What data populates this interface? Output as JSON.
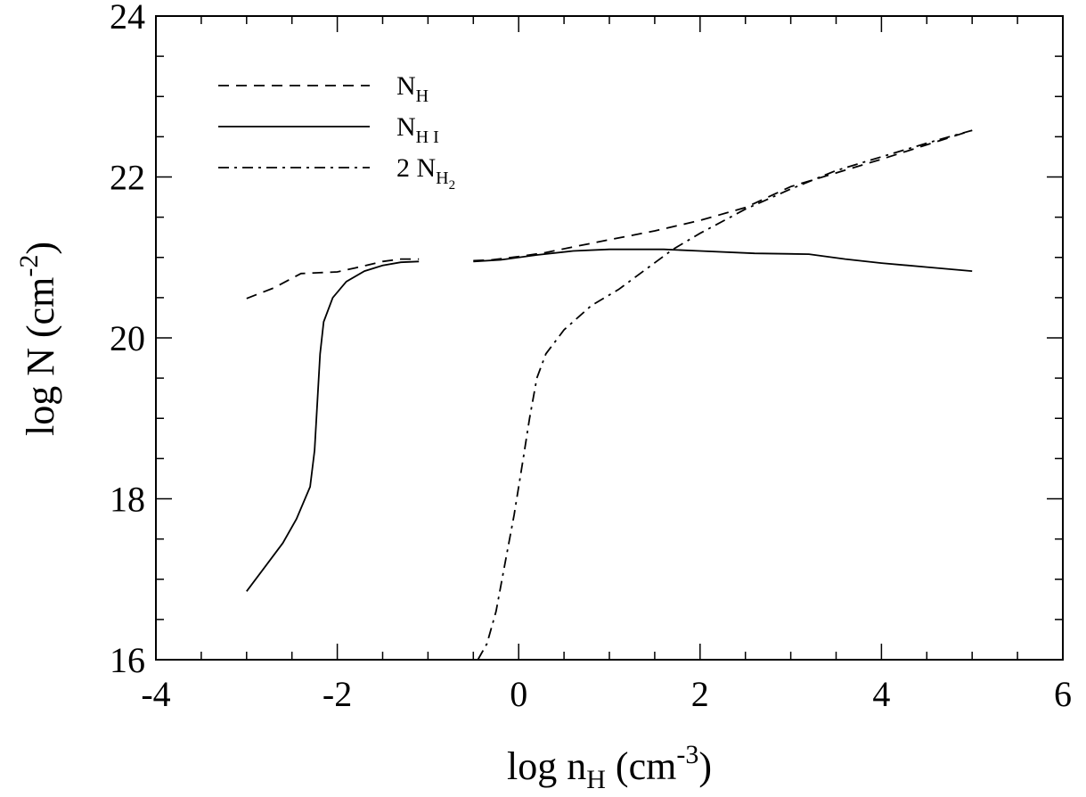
{
  "chart_data": {
    "type": "line",
    "xlabel": {
      "base": "log n",
      "sub": "H",
      "unit_open": " (cm",
      "sup": "-3",
      "unit_close": ")"
    },
    "ylabel": {
      "base": "log N (cm",
      "sup": "-2",
      "close": ")"
    },
    "xlim": [
      -4,
      6
    ],
    "ylim": [
      16,
      24
    ],
    "x_ticks": [
      -4,
      -2,
      0,
      2,
      4,
      6
    ],
    "x_tick_labels": [
      "-4",
      "-2",
      "0",
      "2",
      "4",
      "6"
    ],
    "y_ticks": [
      16,
      18,
      20,
      22,
      24
    ],
    "y_tick_labels": [
      "16",
      "18",
      "20",
      "22",
      "24"
    ],
    "grid": false,
    "legend_position": "top-left",
    "series": [
      {
        "key": "NH",
        "legend": {
          "prefix": "",
          "base": "N",
          "sub": "H",
          "sub2": ""
        },
        "style": "dashed",
        "color": "#000000",
        "segments": [
          [
            [
              -3.0,
              20.49
            ],
            [
              -2.7,
              20.62
            ],
            [
              -2.4,
              20.8
            ],
            [
              -2.2,
              20.81
            ],
            [
              -2.0,
              20.82
            ],
            [
              -1.8,
              20.87
            ],
            [
              -1.5,
              20.95
            ],
            [
              -1.3,
              20.98
            ],
            [
              -1.1,
              20.98
            ]
          ],
          [
            [
              -0.5,
              20.96
            ],
            [
              -0.3,
              20.97
            ],
            [
              0.0,
              21.01
            ],
            [
              0.3,
              21.06
            ],
            [
              0.6,
              21.13
            ],
            [
              1.0,
              21.22
            ],
            [
              1.5,
              21.33
            ],
            [
              2.0,
              21.46
            ],
            [
              2.5,
              21.62
            ],
            [
              3.0,
              21.88
            ],
            [
              3.5,
              22.05
            ],
            [
              4.0,
              22.22
            ],
            [
              4.5,
              22.4
            ],
            [
              5.0,
              22.58
            ]
          ]
        ]
      },
      {
        "key": "NHI",
        "legend": {
          "prefix": "",
          "base": "N",
          "sub": "H I",
          "sub2": ""
        },
        "style": "solid",
        "color": "#000000",
        "segments": [
          [
            [
              -3.0,
              16.85
            ],
            [
              -2.8,
              17.15
            ],
            [
              -2.6,
              17.45
            ],
            [
              -2.45,
              17.75
            ],
            [
              -2.3,
              18.15
            ],
            [
              -2.25,
              18.6
            ],
            [
              -2.22,
              19.2
            ],
            [
              -2.19,
              19.8
            ],
            [
              -2.15,
              20.2
            ],
            [
              -2.05,
              20.5
            ],
            [
              -1.9,
              20.7
            ],
            [
              -1.7,
              20.83
            ],
            [
              -1.5,
              20.9
            ],
            [
              -1.3,
              20.94
            ],
            [
              -1.1,
              20.95
            ]
          ],
          [
            [
              -0.5,
              20.95
            ],
            [
              -0.2,
              20.97
            ],
            [
              0.2,
              21.03
            ],
            [
              0.6,
              21.08
            ],
            [
              1.0,
              21.1
            ],
            [
              1.6,
              21.1
            ],
            [
              2.0,
              21.08
            ],
            [
              2.6,
              21.05
            ],
            [
              3.2,
              21.04
            ],
            [
              3.6,
              20.98
            ],
            [
              4.0,
              20.93
            ],
            [
              4.5,
              20.88
            ],
            [
              5.0,
              20.83
            ]
          ]
        ]
      },
      {
        "key": "2NH2",
        "legend": {
          "prefix": "2 ",
          "base": "N",
          "sub": "H",
          "sub2": "2"
        },
        "style": "dashdot",
        "color": "#000000",
        "segments": [
          [
            [
              -0.45,
              16.0
            ],
            [
              -0.35,
              16.2
            ],
            [
              -0.25,
              16.6
            ],
            [
              -0.15,
              17.2
            ],
            [
              -0.05,
              17.8
            ],
            [
              0.05,
              18.5
            ],
            [
              0.12,
              19.0
            ],
            [
              0.2,
              19.5
            ],
            [
              0.3,
              19.8
            ],
            [
              0.5,
              20.1
            ],
            [
              0.8,
              20.4
            ],
            [
              1.1,
              20.6
            ],
            [
              1.4,
              20.85
            ],
            [
              1.7,
              21.1
            ],
            [
              2.0,
              21.3
            ],
            [
              2.5,
              21.6
            ],
            [
              3.0,
              21.85
            ],
            [
              3.5,
              22.08
            ],
            [
              4.0,
              22.25
            ],
            [
              4.5,
              22.42
            ],
            [
              5.0,
              22.58
            ]
          ]
        ]
      }
    ]
  }
}
